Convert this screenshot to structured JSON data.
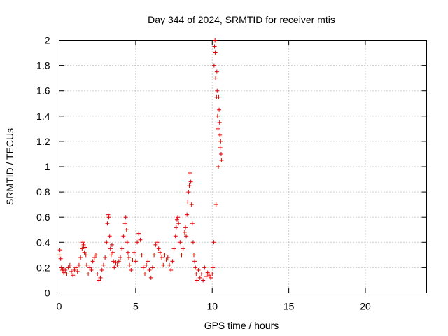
{
  "chart_data": {
    "type": "scatter",
    "title": "Day 344 of 2024, SRMTID for receiver mtis",
    "xlabel": "GPS time / hours",
    "ylabel": "SRMTID / TECUs",
    "xlim": [
      0,
      24
    ],
    "ylim": [
      0,
      2
    ],
    "x_ticks": [
      0,
      5,
      10,
      15,
      20
    ],
    "x_tick_labels": [
      "0",
      "5",
      "10",
      "15",
      "20"
    ],
    "y_ticks": [
      0,
      0.2,
      0.4,
      0.6,
      0.8,
      1,
      1.2,
      1.4,
      1.6,
      1.8,
      2
    ],
    "y_tick_labels": [
      "0",
      "0.2",
      "0.4",
      "0.6",
      "0.8",
      "1",
      "1.2",
      "1.4",
      "1.6",
      "1.8",
      "2"
    ],
    "grid": true,
    "marker": "plus",
    "color": "#e00000",
    "series": [
      {
        "name": "SRMTID",
        "x": [
          0.0,
          0.05,
          0.1,
          0.15,
          0.2,
          0.25,
          0.3,
          0.4,
          0.5,
          0.6,
          0.7,
          0.8,
          0.9,
          1.0,
          1.1,
          1.2,
          1.3,
          1.4,
          1.5,
          1.55,
          1.6,
          1.65,
          1.7,
          1.75,
          1.8,
          1.9,
          2.0,
          2.1,
          2.2,
          2.3,
          2.4,
          2.5,
          2.6,
          2.7,
          2.8,
          2.9,
          3.0,
          3.1,
          3.15,
          3.2,
          3.25,
          3.3,
          3.35,
          3.4,
          3.45,
          3.5,
          3.55,
          3.6,
          3.7,
          3.8,
          3.9,
          4.0,
          4.1,
          4.2,
          4.3,
          4.35,
          4.4,
          4.45,
          4.5,
          4.55,
          4.6,
          4.7,
          4.8,
          4.9,
          5.0,
          5.1,
          5.2,
          5.3,
          5.4,
          5.5,
          5.6,
          5.7,
          5.8,
          5.9,
          6.0,
          6.1,
          6.2,
          6.3,
          6.4,
          6.5,
          6.6,
          6.7,
          6.8,
          6.9,
          7.0,
          7.1,
          7.2,
          7.3,
          7.4,
          7.5,
          7.6,
          7.65,
          7.7,
          7.75,
          7.8,
          7.9,
          8.0,
          8.1,
          8.2,
          8.25,
          8.3,
          8.35,
          8.4,
          8.45,
          8.5,
          8.55,
          8.6,
          8.65,
          8.7,
          8.75,
          8.8,
          8.85,
          8.9,
          8.95,
          9.0,
          9.1,
          9.2,
          9.3,
          9.4,
          9.5,
          9.6,
          9.7,
          9.8,
          9.9,
          10.0,
          10.05,
          10.1,
          10.12,
          10.15,
          10.18,
          10.2,
          10.22,
          10.25,
          10.28,
          10.3,
          10.32,
          10.35,
          10.38,
          10.4,
          10.42,
          10.45,
          10.48,
          10.5,
          10.52,
          10.55,
          10.58,
          10.6
        ],
        "y": [
          0.3,
          0.34,
          0.27,
          0.2,
          0.18,
          0.19,
          0.16,
          0.18,
          0.15,
          0.2,
          0.22,
          0.17,
          0.14,
          0.18,
          0.2,
          0.17,
          0.22,
          0.28,
          0.35,
          0.4,
          0.38,
          0.32,
          0.36,
          0.3,
          0.22,
          0.15,
          0.2,
          0.18,
          0.25,
          0.28,
          0.3,
          0.15,
          0.1,
          0.12,
          0.18,
          0.22,
          0.28,
          0.4,
          0.55,
          0.62,
          0.6,
          0.45,
          0.35,
          0.3,
          0.38,
          0.32,
          0.25,
          0.2,
          0.24,
          0.22,
          0.25,
          0.28,
          0.35,
          0.45,
          0.55,
          0.6,
          0.5,
          0.4,
          0.32,
          0.28,
          0.22,
          0.18,
          0.26,
          0.32,
          0.25,
          0.4,
          0.47,
          0.42,
          0.3,
          0.2,
          0.15,
          0.22,
          0.25,
          0.18,
          0.12,
          0.2,
          0.3,
          0.38,
          0.4,
          0.35,
          0.32,
          0.28,
          0.22,
          0.3,
          0.26,
          0.28,
          0.22,
          0.18,
          0.25,
          0.35,
          0.45,
          0.52,
          0.58,
          0.6,
          0.55,
          0.4,
          0.3,
          0.35,
          0.48,
          0.52,
          0.45,
          0.62,
          0.72,
          0.8,
          0.85,
          0.95,
          0.88,
          0.7,
          0.55,
          0.4,
          0.3,
          0.25,
          0.2,
          0.15,
          0.1,
          0.18,
          0.12,
          0.15,
          0.1,
          0.2,
          0.13,
          0.16,
          0.14,
          0.12,
          0.15,
          0.2,
          0.4,
          1.8,
          1.95,
          2.0,
          1.9,
          1.7,
          0.7,
          1.55,
          1.75,
          1.6,
          1.4,
          1.3,
          1.0,
          1.55,
          1.45,
          1.35,
          1.25,
          1.15,
          1.2,
          1.1,
          1.05
        ]
      }
    ]
  }
}
